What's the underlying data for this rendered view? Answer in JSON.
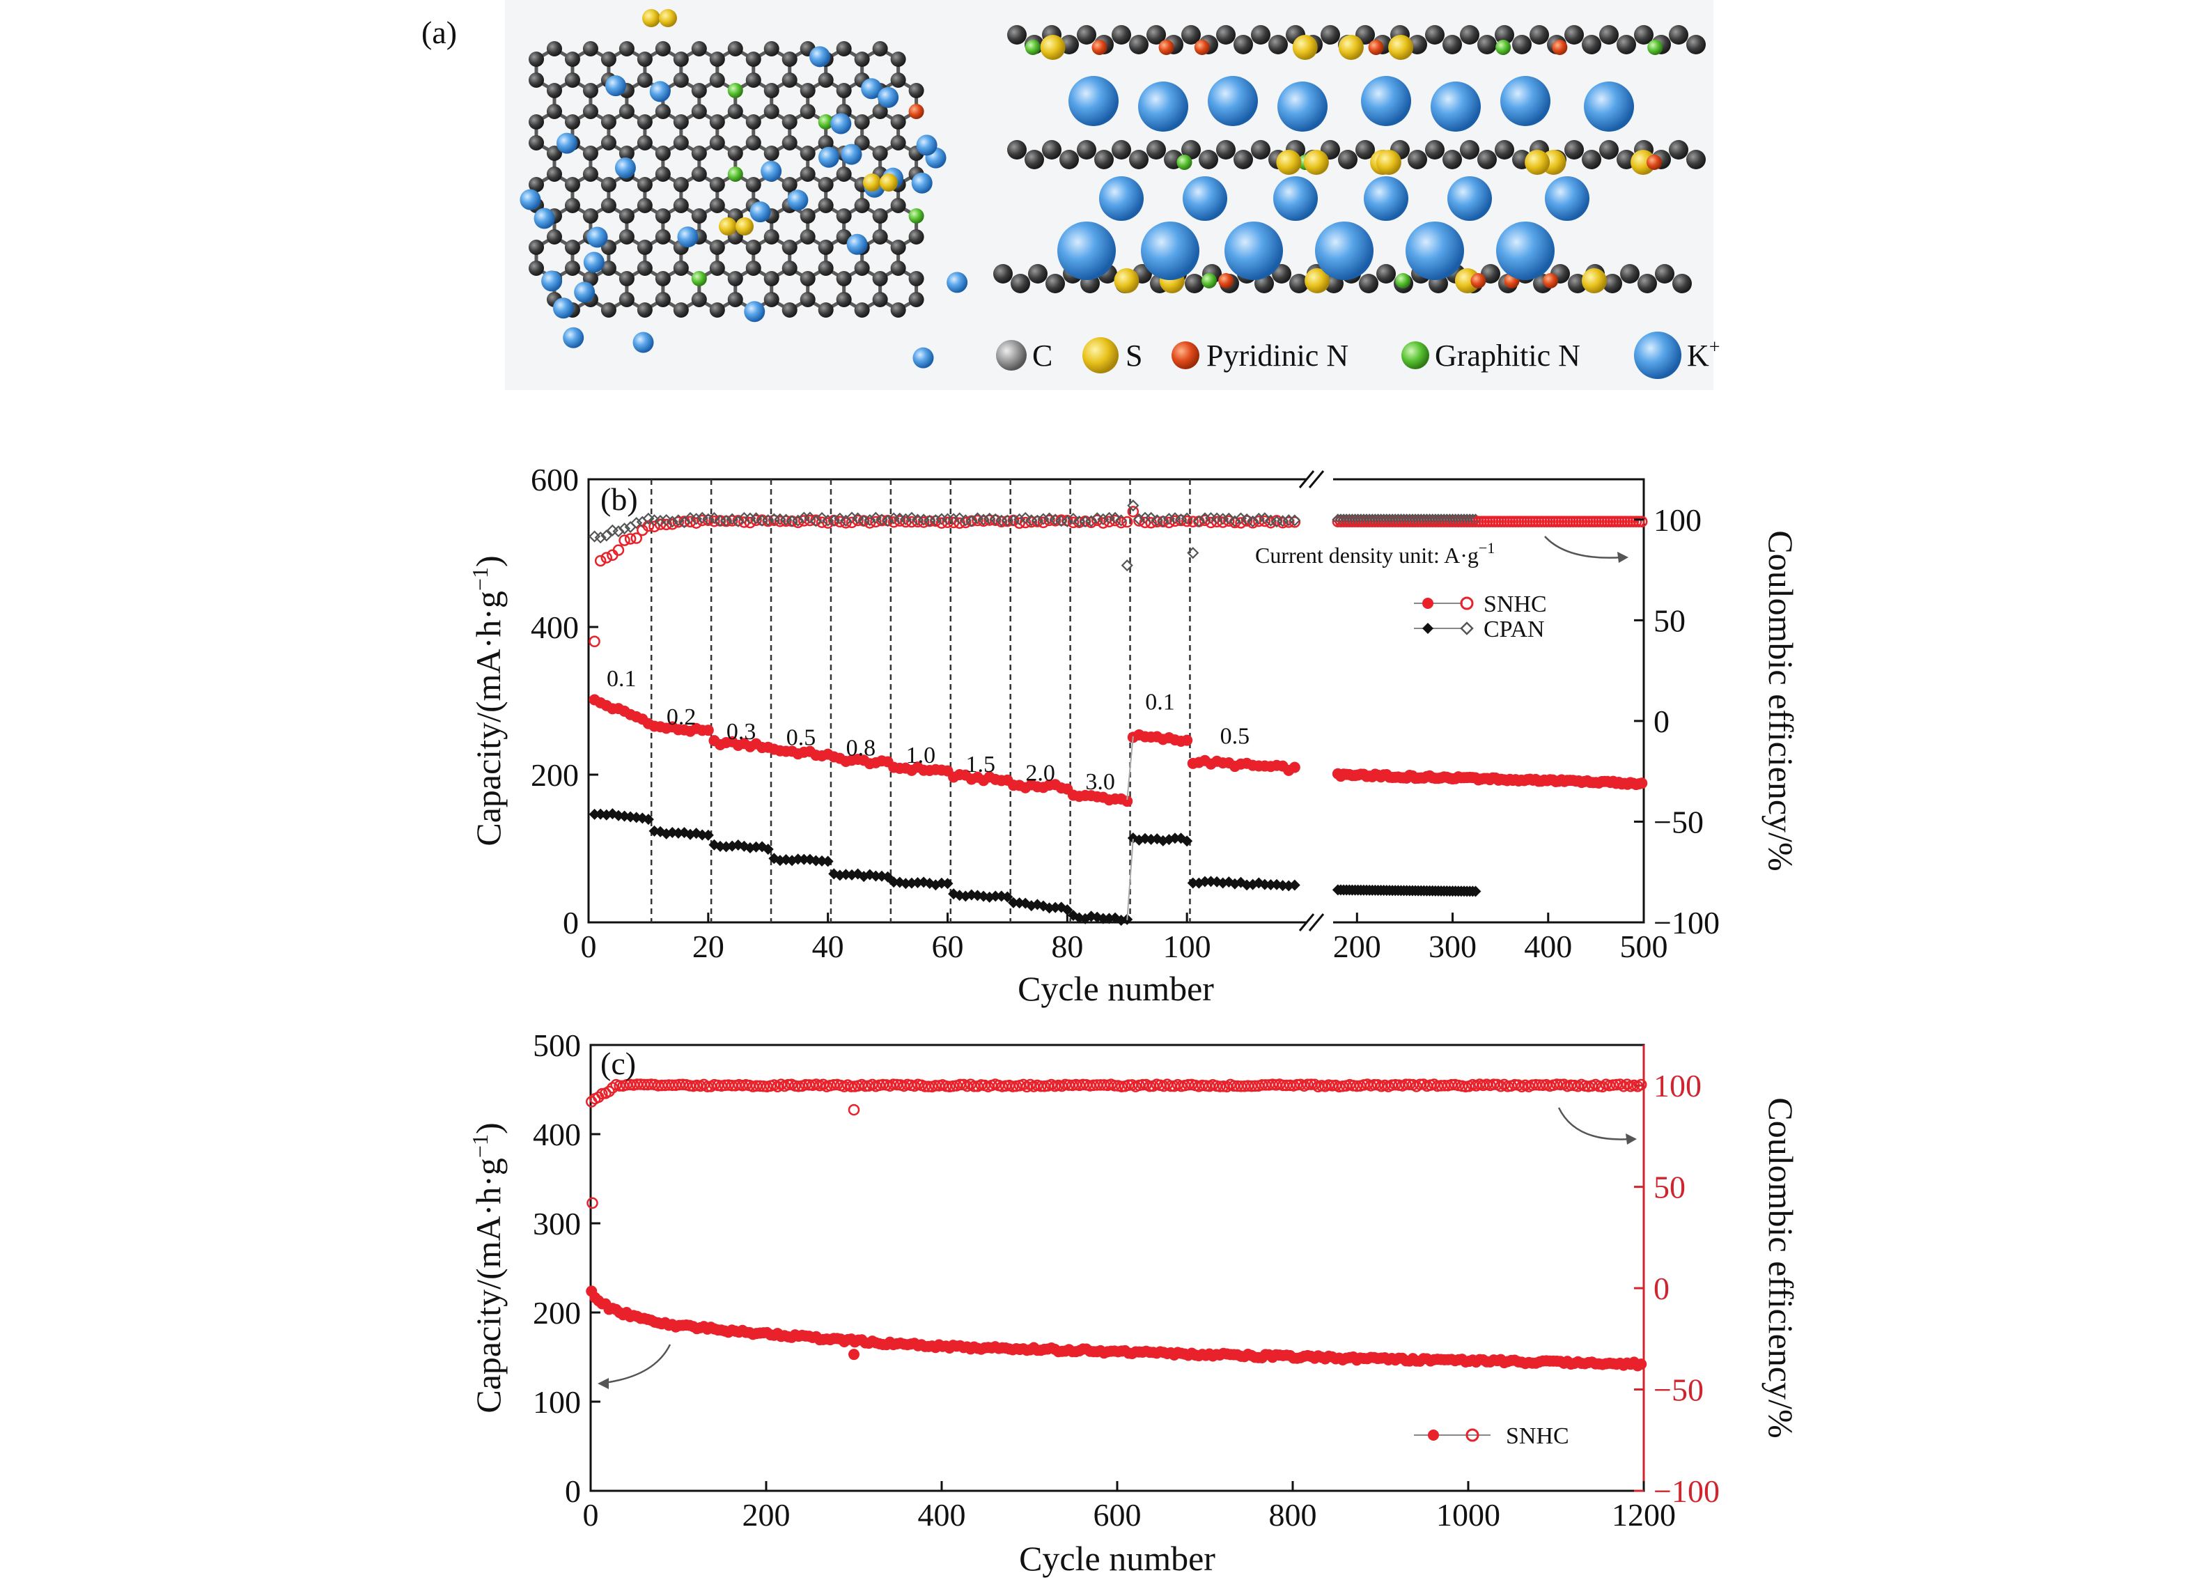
{
  "panel_a": {
    "label": "(a)",
    "legend": [
      {
        "symbol": "C",
        "color": "#4a4a4a"
      },
      {
        "symbol": "S",
        "color": "#e8c21c"
      },
      {
        "symbol": "Pyridinic N",
        "color": "#e04a1a"
      },
      {
        "symbol": "Graphitic N",
        "color": "#58c232"
      },
      {
        "symbol": "K",
        "sup": "+",
        "color": "#3d8fd8"
      }
    ]
  },
  "chart_data": [
    {
      "type": "scatter",
      "panel_label": "(b)",
      "xlabel": "Cycle number",
      "ylabel_left": "Capacity/(mA·h·g",
      "ylabel_left_sup": "−1",
      "ylabel_left_close": ")",
      "ylabel_right": "Coulombic efficiency/%",
      "x_segment1_ticks": [
        0,
        20,
        40,
        60,
        80,
        100
      ],
      "x_segment1_range": [
        0,
        120
      ],
      "x_segment2_ticks": [
        200,
        300,
        400,
        500
      ],
      "x_segment2_range": [
        175,
        500
      ],
      "y_left_ticks": [
        0,
        200,
        400,
        600
      ],
      "y_left_range": [
        0,
        600
      ],
      "y_right_ticks": [
        -100,
        -50,
        0,
        50,
        100
      ],
      "y_right_range": [
        -100,
        120
      ],
      "rate_steps": [
        {
          "start": 1,
          "end": 10,
          "rate": "0.1",
          "snhc_cap": [
            300,
            272
          ],
          "cpan_cap": [
            148,
            140
          ]
        },
        {
          "start": 11,
          "end": 20,
          "rate": "0.2",
          "snhc_cap": [
            265,
            258
          ],
          "cpan_cap": [
            122,
            118
          ]
        },
        {
          "start": 21,
          "end": 30,
          "rate": "0.3",
          "snhc_cap": [
            244,
            238
          ],
          "cpan_cap": [
            105,
            101
          ]
        },
        {
          "start": 31,
          "end": 40,
          "rate": "0.5",
          "snhc_cap": [
            234,
            226
          ],
          "cpan_cap": [
            86,
            83
          ]
        },
        {
          "start": 41,
          "end": 50,
          "rate": "0.8",
          "snhc_cap": [
            222,
            215
          ],
          "cpan_cap": [
            66,
            61
          ]
        },
        {
          "start": 51,
          "end": 60,
          "rate": "1.0",
          "snhc_cap": [
            210,
            205
          ],
          "cpan_cap": [
            55,
            51
          ]
        },
        {
          "start": 61,
          "end": 70,
          "rate": "1.5",
          "snhc_cap": [
            198,
            192
          ],
          "cpan_cap": [
            37,
            34
          ]
        },
        {
          "start": 71,
          "end": 80,
          "rate": "2.0",
          "snhc_cap": [
            186,
            183
          ],
          "cpan_cap": [
            26,
            18
          ]
        },
        {
          "start": 81,
          "end": 90,
          "rate": "3.0",
          "snhc_cap": [
            172,
            166
          ],
          "cpan_cap": [
            8,
            3
          ]
        },
        {
          "start": 91,
          "end": 100,
          "rate": "0.1",
          "snhc_cap": [
            252,
            246
          ],
          "cpan_cap": [
            113,
            112
          ]
        },
        {
          "start": 101,
          "end": 118,
          "rate": "0.5",
          "snhc_cap": [
            218,
            208
          ],
          "cpan_cap": [
            54,
            51
          ]
        }
      ],
      "long_segment": {
        "snhc_cap_start": 200,
        "snhc_cap_end": 188,
        "cpan_cap_start": 44,
        "cpan_cap_end": 42,
        "cpan_end_cycle": 325
      },
      "efficiency": {
        "steady_snhc": 99,
        "steady_cpan": 100
      },
      "series": [
        {
          "name": "SNHC",
          "color": "#e8212b"
        },
        {
          "name": "CPAN",
          "color": "#111111"
        }
      ],
      "note": "Current density unit: A·g",
      "note_sup": "−1"
    },
    {
      "type": "scatter",
      "panel_label": "(c)",
      "xlabel": "Cycle number",
      "ylabel_left": "Capacity/(mA·h·g",
      "ylabel_left_sup": "−1",
      "ylabel_left_close": ")",
      "ylabel_right": "Coulombic efficiency/%",
      "x_ticks": [
        0,
        200,
        400,
        600,
        800,
        1000,
        1200
      ],
      "x_range": [
        0,
        1200
      ],
      "y_left_ticks": [
        0,
        100,
        200,
        300,
        400,
        500
      ],
      "y_left_range": [
        0,
        500
      ],
      "y_right_ticks": [
        -100,
        -50,
        0,
        50,
        100
      ],
      "y_right_range": [
        -100,
        120
      ],
      "capacity_curve": [
        [
          1,
          222
        ],
        [
          20,
          205
        ],
        [
          50,
          195
        ],
        [
          100,
          185
        ],
        [
          200,
          176
        ],
        [
          300,
          168
        ],
        [
          400,
          162
        ],
        [
          600,
          156
        ],
        [
          800,
          150
        ],
        [
          1000,
          146
        ],
        [
          1200,
          142
        ]
      ],
      "efficiency_steady": 100,
      "outliers": {
        "capacity": [
          300,
          153
        ],
        "efficiency": [
          [
            300,
            88
          ],
          [
            2,
            42
          ]
        ]
      },
      "series": [
        {
          "name": "SNHC",
          "color": "#e8212b"
        }
      ]
    }
  ]
}
